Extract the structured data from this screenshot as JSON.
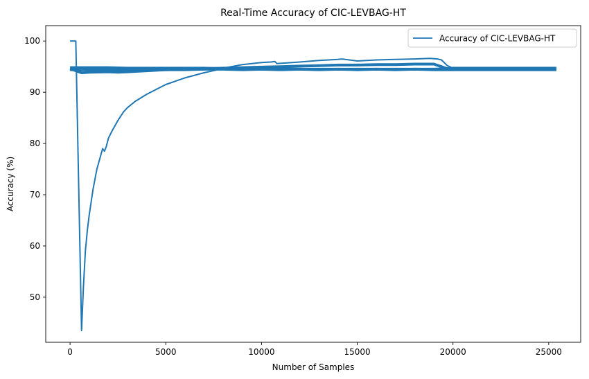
{
  "chart_data": {
    "type": "line",
    "title": "Real-Time Accuracy of CIC-LEVBAG-HT",
    "xlabel": "Number of Samples",
    "ylabel": "Accuracy (%)",
    "xlim": [
      -1270,
      26670
    ],
    "ylim": [
      41.2,
      103.0
    ],
    "xticks": [
      0,
      5000,
      10000,
      15000,
      20000,
      25000
    ],
    "yticks": [
      50,
      60,
      70,
      80,
      90,
      100
    ],
    "grid": false,
    "legend_position": "top-right",
    "color": "#1f77b4",
    "series": [
      {
        "name": "Accuracy of CIC-LEVBAG-HT",
        "x": [
          0,
          300,
          600,
          700,
          800,
          900,
          1000,
          1200,
          1400,
          1700,
          1800,
          1900,
          2000,
          2200,
          2500,
          2800,
          3000,
          3400,
          4000,
          5000,
          6000,
          7000,
          7600,
          8000,
          9000,
          10000,
          10500,
          10700,
          10800,
          12000,
          13000,
          14000,
          14200,
          15000,
          16000,
          17000,
          18000,
          18800,
          19200,
          19400,
          19700,
          20000,
          21000,
          22000,
          23000,
          24000,
          25000,
          25400
        ],
        "y": [
          100,
          100,
          43.5,
          52,
          59,
          63,
          66,
          71,
          75,
          79,
          78.5,
          79.5,
          81,
          82.5,
          84.5,
          86.2,
          87,
          88.2,
          89.6,
          91.5,
          92.8,
          93.8,
          94.3,
          94.7,
          95.4,
          95.8,
          95.9,
          96.0,
          95.6,
          95.9,
          96.2,
          96.4,
          96.5,
          96.1,
          96.3,
          96.4,
          96.5,
          96.6,
          96.5,
          96.3,
          95.2,
          94.7,
          94.6,
          94.6,
          94.6,
          94.6,
          94.6,
          94.6
        ]
      },
      {
        "x": [
          0,
          600,
          1000,
          2000,
          2500,
          3000,
          4000,
          5000,
          6000,
          7000,
          8000,
          9000,
          10000,
          11000,
          12000,
          13000,
          14000,
          15000,
          16000,
          17000,
          18000,
          19000,
          19700,
          20000,
          21000,
          22000,
          23000,
          24000,
          25000,
          25400
        ],
        "y": [
          94.6,
          93.8,
          93.9,
          94.0,
          93.9,
          94.0,
          94.2,
          94.4,
          94.5,
          94.6,
          94.7,
          94.8,
          94.9,
          95.0,
          95.1,
          95.2,
          95.3,
          95.3,
          95.4,
          95.4,
          95.5,
          95.5,
          94.6,
          94.6,
          94.6,
          94.6,
          94.6,
          94.6,
          94.6,
          94.6
        ]
      },
      {
        "x": [
          0,
          1000,
          2000,
          3000,
          4000,
          5000,
          6000,
          7000,
          8000,
          9000,
          10000,
          11000,
          12000,
          13000,
          14000,
          15000,
          16000,
          17000,
          18000,
          19000,
          19700,
          20000,
          21000,
          22000,
          23000,
          24000,
          25000,
          25400
        ],
        "y": [
          94.8,
          94.8,
          94.8,
          94.7,
          94.7,
          94.7,
          94.7,
          94.7,
          94.6,
          94.6,
          94.6,
          94.6,
          94.5,
          94.5,
          94.5,
          94.5,
          94.5,
          94.5,
          94.5,
          94.5,
          94.6,
          94.7,
          94.7,
          94.7,
          94.7,
          94.7,
          94.7,
          94.7
        ]
      },
      {
        "x": [
          0,
          1000,
          2000,
          3000,
          4000,
          5000,
          6000,
          7000,
          8000,
          9000,
          10000,
          11000,
          12000,
          13000,
          14000,
          15000,
          16000,
          17000,
          18000,
          19000,
          20000,
          21000,
          22000,
          23000,
          24000,
          25000,
          25400
        ],
        "y": [
          94.4,
          94.4,
          94.4,
          94.4,
          94.4,
          94.4,
          94.4,
          94.5,
          94.5,
          94.4,
          94.5,
          94.4,
          94.5,
          94.4,
          94.5,
          94.4,
          94.5,
          94.4,
          94.5,
          94.4,
          94.4,
          94.4,
          94.4,
          94.4,
          94.4,
          94.4,
          94.4
        ]
      }
    ]
  }
}
